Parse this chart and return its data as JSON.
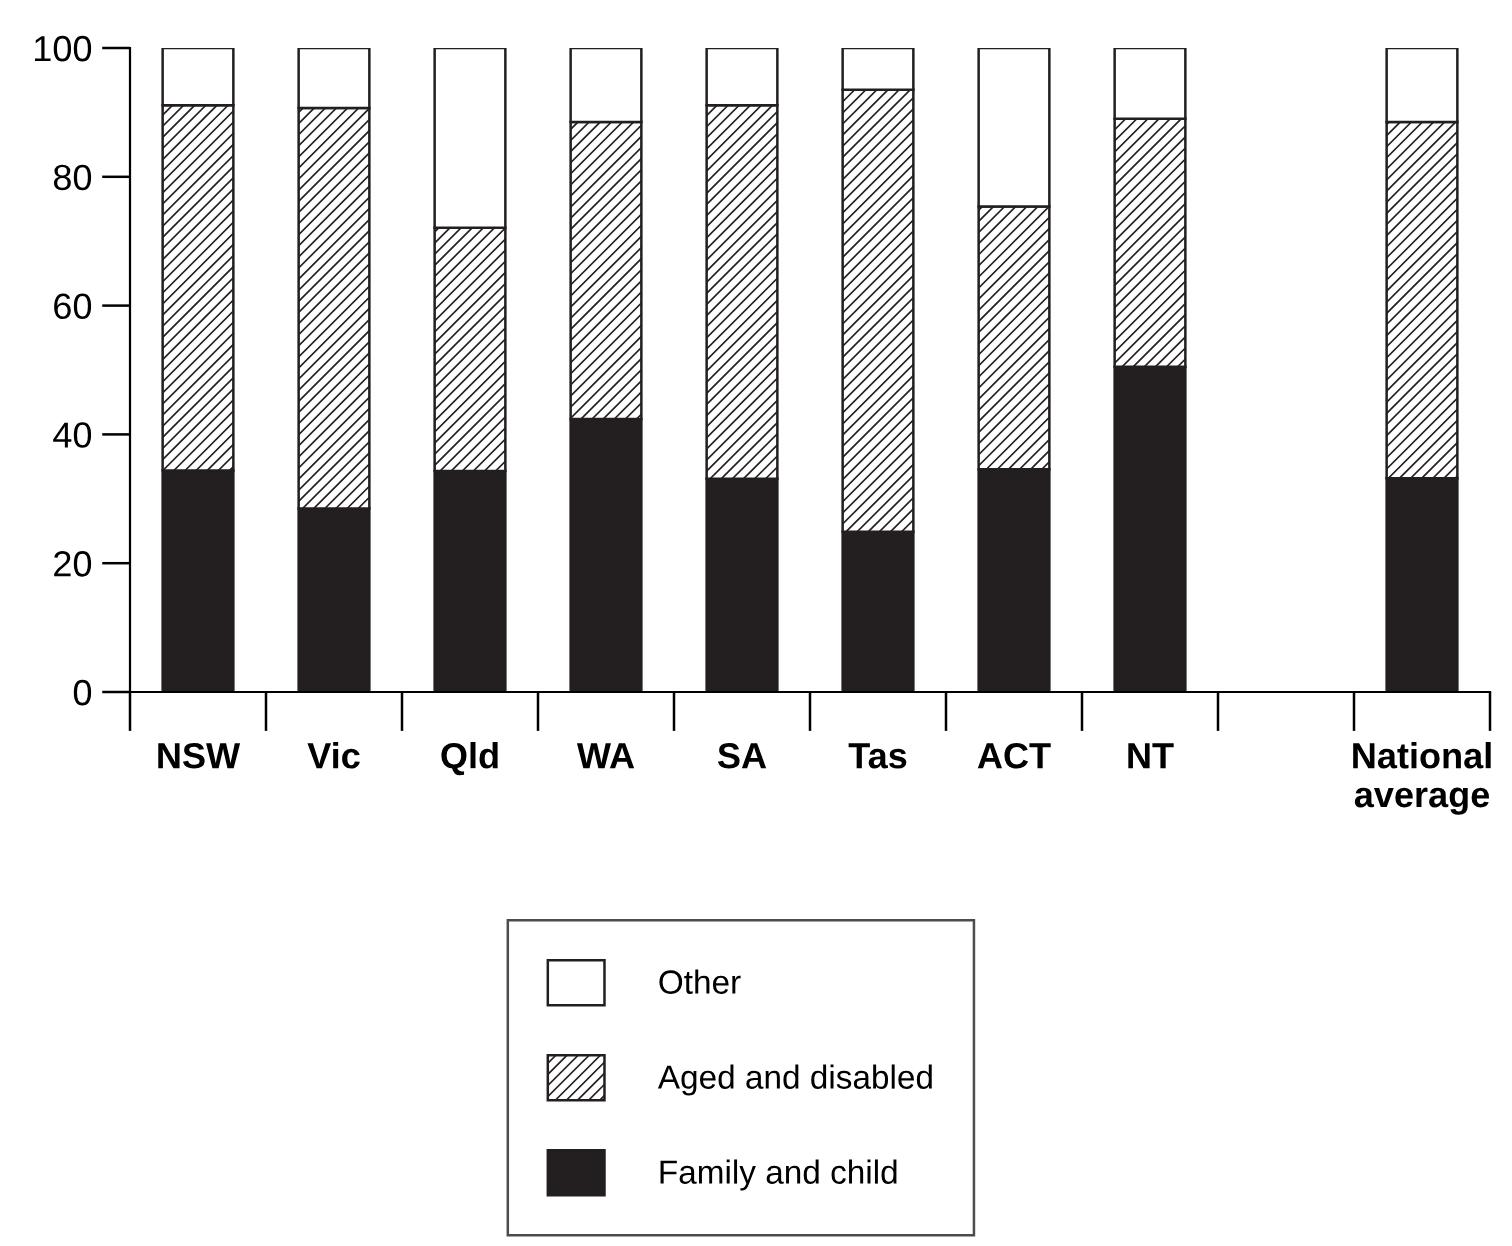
{
  "chart_data": {
    "type": "bar",
    "stacked": true,
    "categories": [
      "NSW",
      "Vic",
      "Qld",
      "WA",
      "SA",
      "Tas",
      "ACT",
      "NT",
      null,
      "National\naverage"
    ],
    "series": [
      {
        "name": "Family and child",
        "color": "#231f20",
        "values": [
          34.4,
          28.5,
          34.3,
          42.4,
          33.1,
          24.9,
          34.6,
          50.5,
          null,
          33.2
        ]
      },
      {
        "name": "Aged and disabled",
        "color": "#231f20",
        "values": [
          56.7,
          62.2,
          37.8,
          46.1,
          58.0,
          68.6,
          40.8,
          38.5,
          null,
          55.3
        ]
      },
      {
        "name": "Other",
        "color": "#ffffff",
        "values": [
          8.9,
          9.3,
          27.9,
          11.5,
          8.9,
          6.5,
          24.6,
          11.0,
          null,
          11.5
        ]
      }
    ],
    "ylim": [
      0,
      100
    ],
    "yticks": [
      0,
      20,
      40,
      60,
      80,
      100
    ],
    "grid": false,
    "legend": "bottom"
  }
}
